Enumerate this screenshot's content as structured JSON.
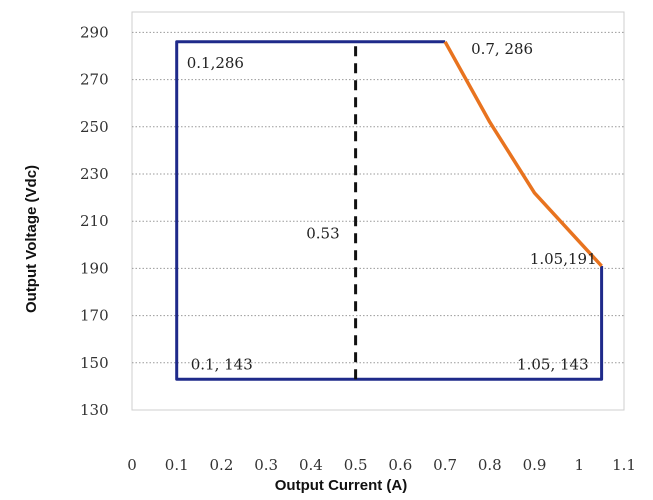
{
  "chart_data": {
    "type": "line",
    "title": "",
    "xlabel": "Output Current (A)",
    "ylabel": "Output Voltage (Vdc)",
    "xlim": [
      0,
      1.1
    ],
    "ylim": [
      130,
      300
    ],
    "x_ticks": [
      0,
      0.1,
      0.2,
      0.3,
      0.4,
      0.5,
      0.6,
      0.7,
      0.8,
      0.9,
      1,
      1.1
    ],
    "y_ticks": [
      130,
      150,
      170,
      190,
      210,
      230,
      250,
      270,
      290
    ],
    "grid": "horizontal dotted",
    "legend": "none",
    "series": [
      {
        "color": "#1f2a8a",
        "style": "solid",
        "points": [
          [
            0.7,
            286
          ],
          [
            0.1,
            286
          ],
          [
            0.1,
            143
          ],
          [
            1.05,
            143
          ],
          [
            1.05,
            191
          ]
        ]
      },
      {
        "color": "#e8731f",
        "style": "solid",
        "points": [
          [
            0.7,
            286
          ],
          [
            0.8,
            252
          ],
          [
            0.9,
            222
          ],
          [
            1.05,
            191
          ]
        ]
      },
      {
        "color": "#111111",
        "style": "dashed",
        "points": [
          [
            0.5,
            143
          ],
          [
            0.5,
            286
          ]
        ]
      }
    ],
    "annotations": [
      {
        "text": "0.1,286",
        "x": 0.1,
        "y": 286
      },
      {
        "text": "0.7, 286",
        "x": 0.7,
        "y": 286
      },
      {
        "text": "0.53",
        "x": 0.5,
        "y": 220
      },
      {
        "text": "1.05,191",
        "x": 1.05,
        "y": 191
      },
      {
        "text": "0.1, 143",
        "x": 0.1,
        "y": 143
      },
      {
        "text": "1.05, 143",
        "x": 1.05,
        "y": 143
      }
    ]
  }
}
